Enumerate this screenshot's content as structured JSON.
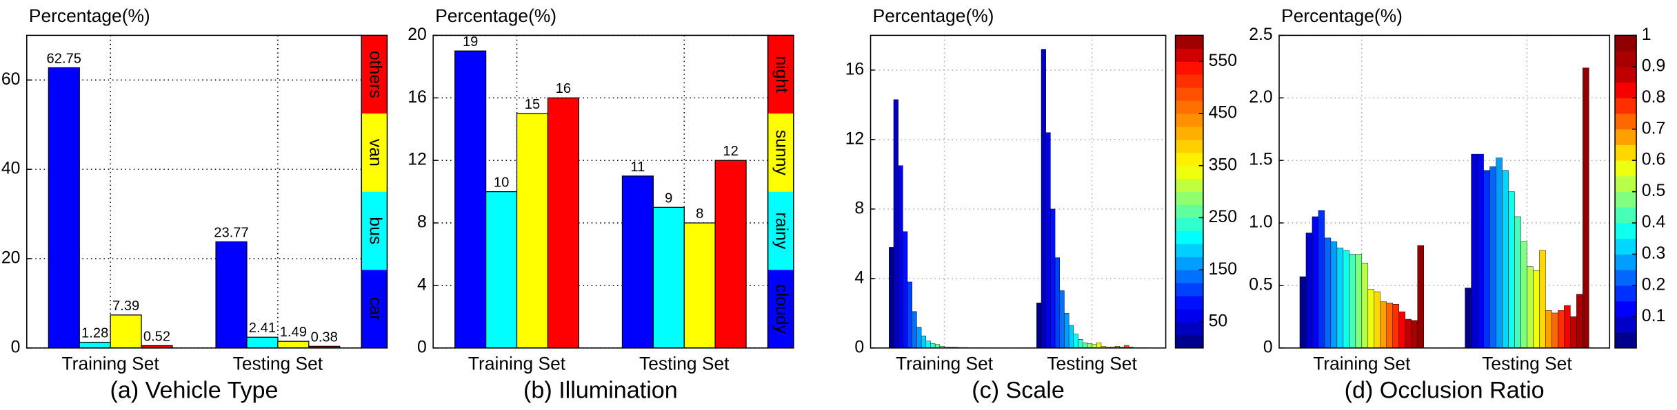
{
  "chart_data": [
    {
      "type": "bar",
      "caption": "(a) Vehicle Type",
      "ylabel": "Percentage(%)",
      "categories": [
        "Training Set",
        "Testing Set"
      ],
      "series": [
        {
          "name": "car",
          "color": "#0000ff",
          "values": [
            62.75,
            23.77
          ]
        },
        {
          "name": "bus",
          "color": "#00ffff",
          "values": [
            1.28,
            2.41
          ]
        },
        {
          "name": "van",
          "color": "#ffff00",
          "values": [
            7.39,
            1.49
          ]
        },
        {
          "name": "others",
          "color": "#ff0000",
          "values": [
            0.52,
            0.38
          ]
        }
      ],
      "ylim": [
        0,
        70
      ],
      "yticks": [
        0,
        20,
        40,
        60
      ],
      "grid": true,
      "legend": "right",
      "data_labels": true
    },
    {
      "type": "bar",
      "caption": "(b) Illumination",
      "ylabel": "Percentage(%)",
      "categories": [
        "Training Set",
        "Testing Set"
      ],
      "series": [
        {
          "name": "cloudy",
          "color": "#0000ff",
          "values": [
            19,
            11
          ]
        },
        {
          "name": "rainy",
          "color": "#00ffff",
          "values": [
            10,
            9
          ]
        },
        {
          "name": "sunny",
          "color": "#ffff00",
          "values": [
            15,
            8
          ]
        },
        {
          "name": "night",
          "color": "#ff0000",
          "values": [
            16,
            12
          ]
        }
      ],
      "ylim": [
        0,
        20
      ],
      "yticks": [
        0,
        4,
        8,
        12,
        16,
        20
      ],
      "grid": true,
      "legend": "right",
      "data_labels": true
    },
    {
      "type": "bar",
      "caption": "(c) Scale",
      "ylabel": "Percentage(%)",
      "categories": [
        "Training Set",
        "Testing Set"
      ],
      "series": [
        {
          "color": "#00008f",
          "values": [
            5.8,
            2.6
          ]
        },
        {
          "color": "#0000bf",
          "values": [
            14.3,
            17.2
          ]
        },
        {
          "color": "#0000ef",
          "values": [
            10.5,
            12.4
          ]
        },
        {
          "color": "#0010ff",
          "values": [
            6.7,
            8.0
          ]
        },
        {
          "color": "#0040ff",
          "values": [
            3.8,
            5.2
          ]
        },
        {
          "color": "#0070ff",
          "values": [
            2.1,
            3.3
          ]
        },
        {
          "color": "#009fff",
          "values": [
            1.2,
            2.0
          ]
        },
        {
          "color": "#00cfff",
          "values": [
            0.7,
            1.3
          ]
        },
        {
          "color": "#00ffff",
          "values": [
            0.4,
            0.8
          ]
        },
        {
          "color": "#30ffcf",
          "values": [
            0.25,
            0.5
          ]
        },
        {
          "color": "#60ff9f",
          "values": [
            0.2,
            0.3
          ]
        },
        {
          "color": "#8fff70",
          "values": [
            0.1,
            0.25
          ]
        },
        {
          "color": "#bfff40",
          "values": [
            0.05,
            0.2
          ]
        },
        {
          "color": "#efff10",
          "values": [
            0.05,
            0.3
          ]
        },
        {
          "color": "#ffef00",
          "values": [
            0.05,
            0.1
          ]
        },
        {
          "color": "#ffcf00",
          "values": [
            0.03,
            0.05
          ]
        },
        {
          "color": "#ffaf00",
          "values": [
            0.03,
            0.05
          ]
        },
        {
          "color": "#ff9000",
          "values": [
            0.02,
            0.1
          ]
        },
        {
          "color": "#ff7000",
          "values": [
            0.02,
            0.05
          ]
        },
        {
          "color": "#ff5000",
          "values": [
            0.02,
            0.15
          ]
        },
        {
          "color": "#ff3000",
          "values": [
            0.02,
            0.05
          ]
        },
        {
          "color": "#ff1000",
          "values": [
            0.01,
            0.02
          ]
        },
        {
          "color": "#d00000",
          "values": [
            0.01,
            0.02
          ]
        },
        {
          "color": "#9f0000",
          "values": [
            0.01,
            0.02
          ]
        }
      ],
      "ylim": [
        0,
        18
      ],
      "yticks": [
        0,
        4,
        8,
        12,
        16
      ],
      "grid": true,
      "colorbar": {
        "lim": [
          0,
          600
        ],
        "ticks": [
          50,
          150,
          250,
          350,
          450,
          550
        ]
      }
    },
    {
      "type": "bar",
      "caption": "(d) Occlusion Ratio",
      "ylabel": "Percentage(%)",
      "categories": [
        "Training Set",
        "Testing Set"
      ],
      "series": [
        {
          "color": "#00008f",
          "values": [
            0.57,
            0.48
          ]
        },
        {
          "color": "#0000c8",
          "values": [
            0.92,
            1.55
          ]
        },
        {
          "color": "#0000ff",
          "values": [
            1.05,
            1.55
          ]
        },
        {
          "color": "#0030ff",
          "values": [
            1.1,
            1.42
          ]
        },
        {
          "color": "#0068ff",
          "values": [
            0.88,
            1.45
          ]
        },
        {
          "color": "#009fff",
          "values": [
            0.85,
            1.52
          ]
        },
        {
          "color": "#00d8ff",
          "values": [
            0.8,
            1.42
          ]
        },
        {
          "color": "#10ffef",
          "values": [
            0.78,
            1.25
          ]
        },
        {
          "color": "#48ffb7",
          "values": [
            0.75,
            1.05
          ]
        },
        {
          "color": "#80ff80",
          "values": [
            0.75,
            0.85
          ]
        },
        {
          "color": "#b7ff48",
          "values": [
            0.68,
            0.65
          ]
        },
        {
          "color": "#efff10",
          "values": [
            0.47,
            0.62
          ]
        },
        {
          "color": "#ffd800",
          "values": [
            0.45,
            0.78
          ]
        },
        {
          "color": "#ffa000",
          "values": [
            0.37,
            0.3
          ]
        },
        {
          "color": "#ff6800",
          "values": [
            0.36,
            0.28
          ]
        },
        {
          "color": "#ff3000",
          "values": [
            0.35,
            0.3
          ]
        },
        {
          "color": "#f80000",
          "values": [
            0.29,
            0.34
          ]
        },
        {
          "color": "#c00000",
          "values": [
            0.23,
            0.25
          ]
        },
        {
          "color": "#a80000",
          "values": [
            0.22,
            0.43
          ]
        },
        {
          "color": "#8f0000",
          "values": [
            0.82,
            2.24
          ]
        }
      ],
      "ylim": [
        0,
        2.5
      ],
      "yticks": [
        0,
        0.5,
        {
          "value": 1,
          "label": "1.0"
        },
        1.5,
        {
          "value": 2,
          "label": "2.0"
        },
        2.5
      ],
      "grid": true,
      "colorbar": {
        "lim": [
          0,
          1
        ],
        "ticks": [
          0.1,
          0.2,
          0.3,
          0.4,
          0.5,
          0.6,
          0.7,
          0.8,
          0.9,
          1
        ]
      }
    }
  ]
}
